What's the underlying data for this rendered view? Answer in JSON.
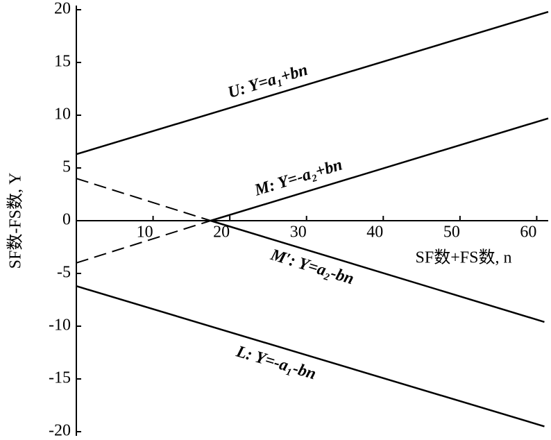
{
  "chart_data": {
    "type": "line",
    "x_label": "SF数+FS数, n",
    "y_label": "SF数-FS数, Y",
    "xlim": [
      0,
      61.5
    ],
    "ylim": [
      -20,
      20
    ],
    "xticks": [
      10,
      20,
      30,
      40,
      50,
      60
    ],
    "yticks": [
      -20,
      -15,
      -10,
      -5,
      0,
      5,
      10,
      15,
      20
    ],
    "color": "#000000",
    "series": [
      {
        "name": "U: Y=a₁+bn",
        "x": [
          0,
          61.5
        ],
        "values": [
          6.3,
          19.8
        ],
        "segment_styles": [
          "solid"
        ]
      },
      {
        "name": "M: Y=-a₂+bn",
        "x": [
          0,
          17.5,
          61.5
        ],
        "values": [
          -4,
          0,
          9.7
        ],
        "segment_styles": [
          "dashed",
          "solid"
        ]
      },
      {
        "name": "M′: Y=a₂-bn",
        "x": [
          0,
          17.5,
          61
        ],
        "values": [
          4,
          0,
          -9.6
        ],
        "segment_styles": [
          "dashed",
          "solid"
        ]
      },
      {
        "name": "L: Y=-a₁-bn",
        "x": [
          0,
          61
        ],
        "values": [
          -6.2,
          -19.5
        ],
        "segment_styles": [
          "solid"
        ]
      }
    ]
  }
}
